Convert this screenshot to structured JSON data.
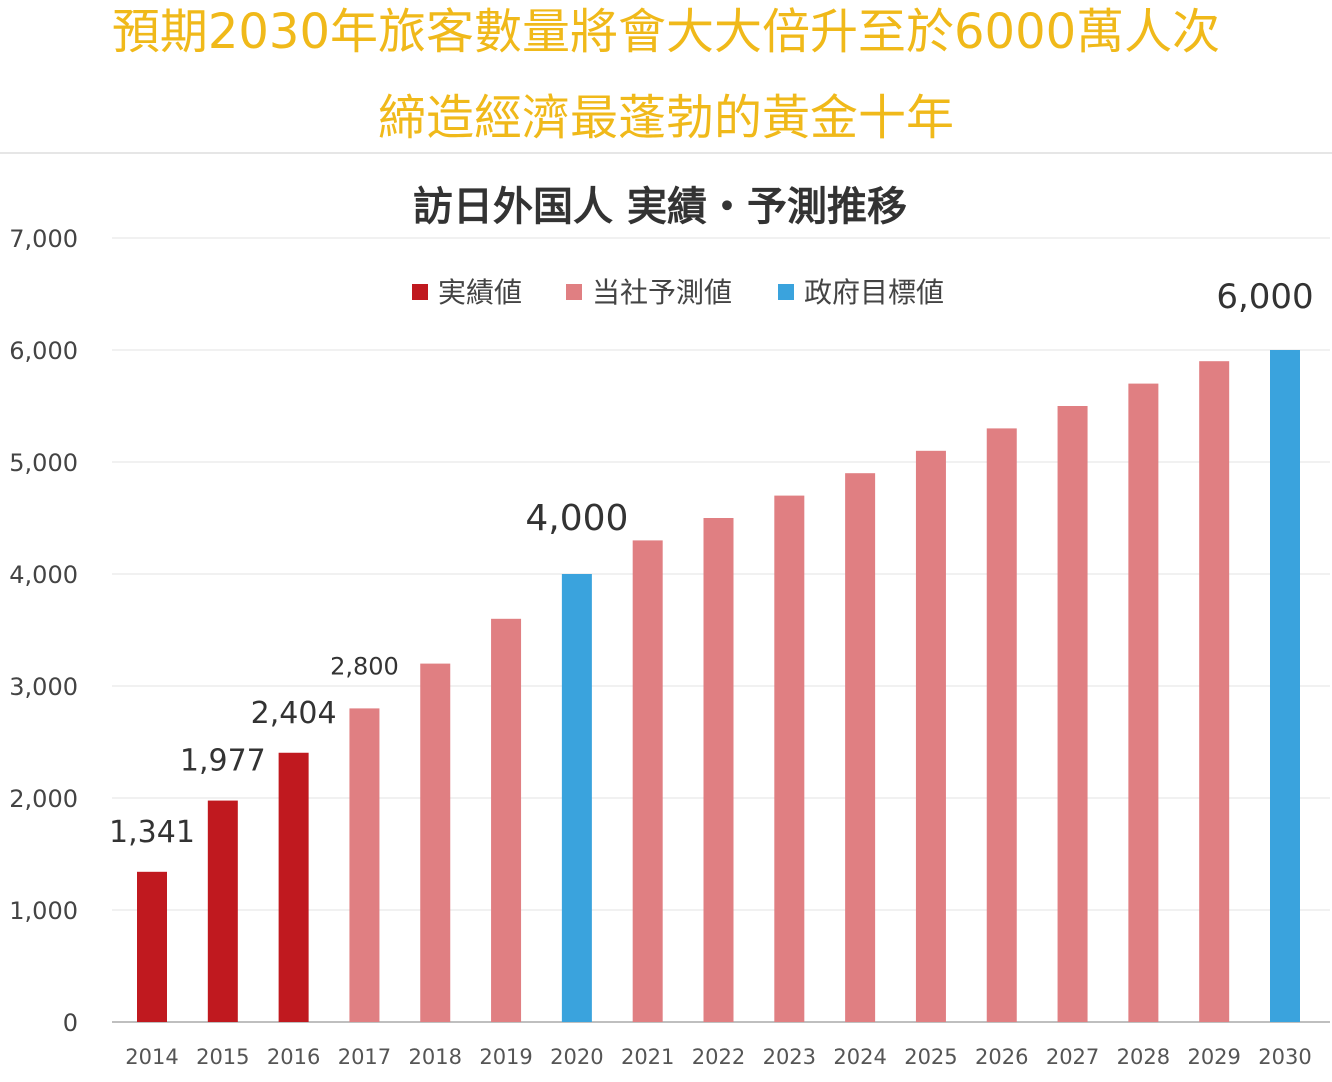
{
  "headline": {
    "line1": "預期2030年旅客數量將會大大倍升至於6000萬人次",
    "line2": "締造經濟最蓬勃的黃金十年"
  },
  "chart_data": {
    "type": "bar",
    "title": "訪日外国人 実績・予測推移",
    "xlabel": "",
    "ylabel": "",
    "ylim": [
      0,
      7000
    ],
    "yticks": [
      0,
      1000,
      2000,
      3000,
      4000,
      5000,
      6000,
      7000
    ],
    "ytick_labels": [
      "0",
      "1,000",
      "2,000",
      "3,000",
      "4,000",
      "5,000",
      "6,000",
      "7,000"
    ],
    "grid": true,
    "legend_position": "top-center",
    "legend": [
      {
        "label": "実績値",
        "color": "#c0191f"
      },
      {
        "label": "当社予測値",
        "color": "#e07f82"
      },
      {
        "label": "政府目標値",
        "color": "#3aa3dd"
      }
    ],
    "categories": [
      "2014",
      "2015",
      "2016",
      "2017",
      "2018",
      "2019",
      "2020",
      "2021",
      "2022",
      "2023",
      "2024",
      "2025",
      "2026",
      "2027",
      "2028",
      "2029",
      "2030"
    ],
    "values": [
      1341,
      1977,
      2404,
      2800,
      3200,
      3600,
      4000,
      4300,
      4500,
      4700,
      4900,
      5100,
      5300,
      5500,
      5700,
      5900,
      6000
    ],
    "bar_series": [
      0,
      0,
      0,
      1,
      1,
      1,
      2,
      1,
      1,
      1,
      1,
      1,
      1,
      1,
      1,
      1,
      2
    ],
    "data_labels": [
      "1,341",
      "1,977",
      "2,404",
      "2,800",
      "",
      "",
      "4,000",
      "",
      "",
      "",
      "",
      "",
      "",
      "",
      "",
      "",
      "6,000"
    ]
  }
}
